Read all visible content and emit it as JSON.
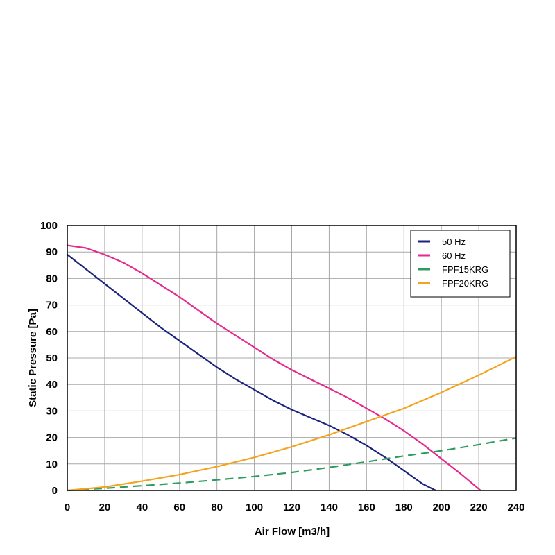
{
  "chart_data": {
    "type": "line",
    "title": "",
    "xlabel": "Air Flow [m3/h]",
    "ylabel": "Static Pressure [Pa]",
    "xlim": [
      0,
      240
    ],
    "ylim": [
      0,
      100
    ],
    "x_ticks": [
      0,
      20,
      40,
      60,
      80,
      100,
      120,
      140,
      160,
      180,
      200,
      220,
      240
    ],
    "y_ticks": [
      0,
      10,
      20,
      30,
      40,
      50,
      60,
      70,
      80,
      90,
      100
    ],
    "grid": true,
    "legend_position": "top-right",
    "series": [
      {
        "name": "50 Hz",
        "color": "#1a237e",
        "dashed": false,
        "x": [
          0,
          10,
          20,
          30,
          40,
          50,
          60,
          70,
          80,
          90,
          100,
          110,
          120,
          130,
          140,
          150,
          160,
          170,
          180,
          190,
          197
        ],
        "y": [
          89,
          83.5,
          78,
          72.5,
          67,
          61.5,
          56.5,
          51.5,
          46.5,
          42,
          38,
          34,
          30.5,
          27.5,
          24.5,
          21,
          17,
          12.5,
          7.5,
          2.5,
          0
        ]
      },
      {
        "name": "60 Hz",
        "color": "#e6298c",
        "dashed": false,
        "x": [
          0,
          10,
          20,
          30,
          40,
          50,
          60,
          70,
          80,
          90,
          100,
          110,
          120,
          130,
          140,
          150,
          160,
          170,
          180,
          190,
          200,
          210,
          221
        ],
        "y": [
          92.5,
          91.5,
          89,
          86,
          82,
          77.5,
          73,
          68,
          63,
          58.5,
          54,
          49.5,
          45.5,
          42,
          38.5,
          35,
          31,
          27,
          22.5,
          17.5,
          12,
          6.5,
          0
        ]
      },
      {
        "name": "FPF15KRG",
        "color": "#2e9b5e",
        "dashed": true,
        "x": [
          0,
          20,
          40,
          60,
          80,
          100,
          120,
          140,
          160,
          180,
          200,
          220,
          240
        ],
        "y": [
          0,
          0.8,
          1.8,
          2.8,
          4,
          5.3,
          6.8,
          8.7,
          10.8,
          13,
          15,
          17.3,
          19.8
        ]
      },
      {
        "name": "FPF20KRG",
        "color": "#f5a31f",
        "dashed": false,
        "x": [
          0,
          20,
          40,
          60,
          80,
          100,
          120,
          140,
          160,
          180,
          200,
          220,
          240
        ],
        "y": [
          0,
          1.3,
          3.5,
          6,
          9,
          12.5,
          16.5,
          21,
          26,
          31,
          37,
          43.5,
          50.5
        ]
      }
    ]
  }
}
